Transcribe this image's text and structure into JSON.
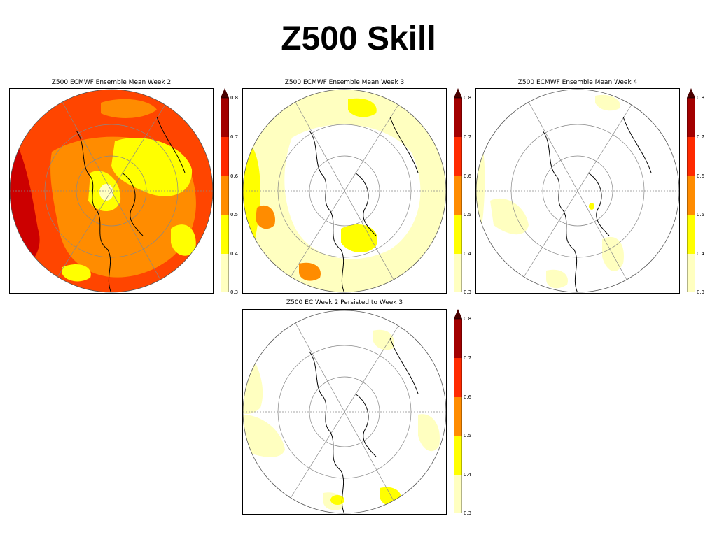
{
  "slide": {
    "title": "Z500 Skill"
  },
  "colors": {
    "levels": [
      "#ffffc0",
      "#ffff00",
      "#ff8c00",
      "#ff4500",
      "#cc0000",
      "#8b0000"
    ],
    "map_outline": "#000000",
    "contour": "#555555"
  },
  "chart_data": [
    {
      "type": "heatmap",
      "title": "Z500 ECMWF Ensemble Mean Week 2",
      "projection": "north-polar-stereographic",
      "colorbar": {
        "levels": [
          0.3,
          0.4,
          0.5,
          0.6,
          0.7,
          0.8
        ],
        "tick_labels": [
          "0.3",
          "0.4",
          "0.5",
          "0.6",
          "0.7",
          "0.8"
        ],
        "extend": "max"
      },
      "dominant_skill_range": [
        0.5,
        0.8
      ]
    },
    {
      "type": "heatmap",
      "title": "Z500 ECMWF Ensemble Mean Week 3",
      "projection": "north-polar-stereographic",
      "colorbar": {
        "levels": [
          0.3,
          0.4,
          0.5,
          0.6,
          0.7,
          0.8
        ],
        "tick_labels": [
          "0.3",
          "0.4",
          "0.5",
          "0.6",
          "0.7",
          "0.8"
        ],
        "extend": "max"
      },
      "dominant_skill_range": [
        0.3,
        0.5
      ]
    },
    {
      "type": "heatmap",
      "title": "Z500 ECMWF Ensemble Mean Week 4",
      "projection": "north-polar-stereographic",
      "colorbar": {
        "levels": [
          0.3,
          0.4,
          0.5,
          0.6,
          0.7,
          0.8
        ],
        "tick_labels": [
          "0.3",
          "0.4",
          "0.5",
          "0.6",
          "0.7",
          "0.8"
        ],
        "extend": "max"
      },
      "dominant_skill_range": [
        0.3,
        0.4
      ]
    },
    {
      "type": "heatmap",
      "title": "Z500 EC Week 2 Persisted to Week 3",
      "projection": "north-polar-stereographic",
      "colorbar": {
        "levels": [
          0.3,
          0.4,
          0.5,
          0.6,
          0.7,
          0.8
        ],
        "tick_labels": [
          "0.3",
          "0.4",
          "0.5",
          "0.6",
          "0.7",
          "0.8"
        ],
        "extend": "max"
      },
      "dominant_skill_range": [
        0.3,
        0.4
      ]
    }
  ]
}
